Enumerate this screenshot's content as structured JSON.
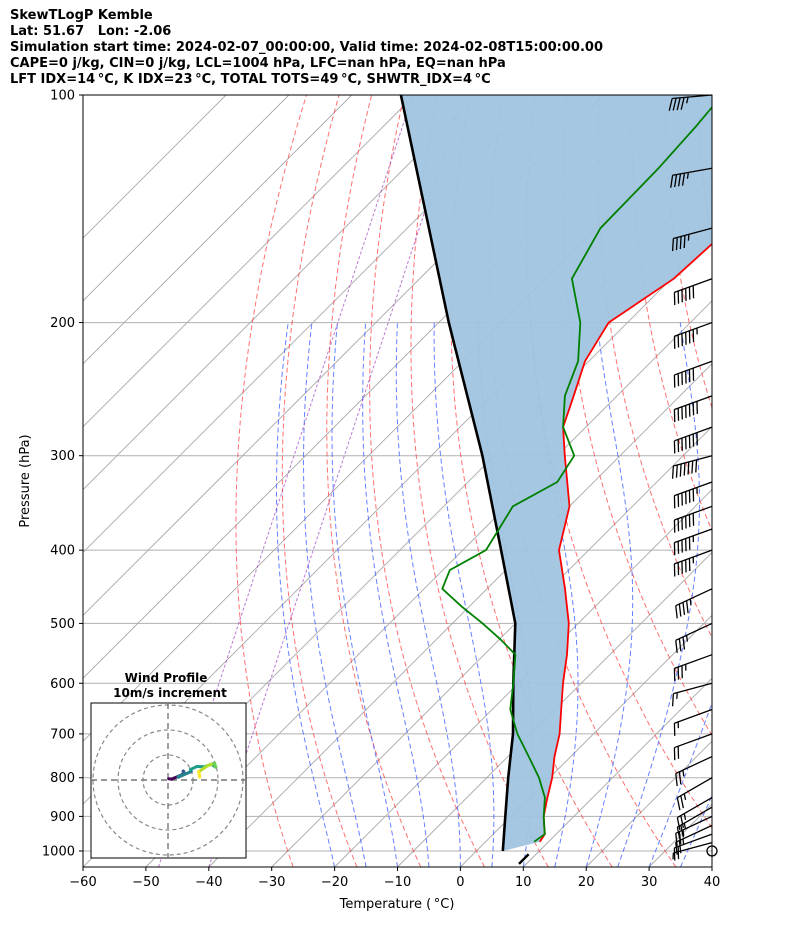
{
  "header": {
    "line1": "SkewTLogP Kemble",
    "line2": "Lat: 51.67   Lon: -2.06",
    "line3": "Simulation start time: 2024-02-07_00:00:00, Valid time: 2024-02-08T15:00:00.00",
    "line4": "CAPE=0 j/kg, CIN=0 j/kg, LCL=1004 hPa, LFC=nan hPa, EQ=nan hPa",
    "line5": "LFT IDX=14 °C, K IDX=23 °C, TOTAL TOTS=49 °C, SHWTR_IDX=4 °C"
  },
  "chart_data": {
    "type": "line",
    "xlabel": "Temperature ( °C)",
    "ylabel": "Pressure (hPa)",
    "xlim": [
      -60,
      40
    ],
    "ylim": [
      1050,
      100
    ],
    "y_scale": "log",
    "skew": "temperature isotherms skewed right with height",
    "x_ticks": [
      "−60",
      "−50",
      "−40",
      "−30",
      "−20",
      "−10",
      "0",
      "10",
      "20",
      "30",
      "40"
    ],
    "y_ticks": [
      "100",
      "200",
      "300",
      "400",
      "500",
      "600",
      "700",
      "800",
      "900",
      "1000"
    ],
    "y_tick_values": [
      100,
      200,
      300,
      400,
      500,
      600,
      700,
      800,
      900,
      1000
    ],
    "grid": true,
    "series": [
      {
        "role": "temperature",
        "color": "#ff0000",
        "pressure": [
          972,
          950,
          925,
          900,
          850,
          800,
          750,
          700,
          650,
          600,
          550,
          500,
          450,
          400,
          350,
          300,
          275,
          250,
          225,
          200,
          175,
          150,
          125,
          110,
          100
        ],
        "values": [
          8.6,
          8.2,
          6.7,
          5.2,
          2.8,
          0.4,
          -2.6,
          -5.4,
          -9.0,
          -12.9,
          -16.8,
          -21.5,
          -27.6,
          -34.7,
          -40.0,
          -48.8,
          -53.6,
          -56.9,
          -60.6,
          -63.0,
          -59.6,
          -58.8,
          -59.1,
          -61.7,
          -64.3
        ]
      },
      {
        "role": "dewpoint",
        "color": "#008000",
        "pressure": [
          972,
          950,
          925,
          900,
          850,
          800,
          750,
          700,
          650,
          600,
          550,
          525,
          500,
          475,
          450,
          425,
          400,
          375,
          350,
          325,
          300,
          275,
          250,
          225,
          200,
          175,
          150,
          125,
          110,
          100
        ],
        "values": [
          7.7,
          8.2,
          6.7,
          5.2,
          2.4,
          -1.7,
          -6.7,
          -12.1,
          -17.1,
          -20.8,
          -25.0,
          -29.8,
          -35.2,
          -41.2,
          -47.1,
          -48.9,
          -46.3,
          -47.6,
          -49.0,
          -45.8,
          -47.3,
          -53.6,
          -58.3,
          -61.7,
          -67.5,
          -75.8,
          -79.3,
          -79.6,
          -80.3,
          -81.1
        ]
      },
      {
        "role": "parcel",
        "color": "#000000",
        "pressure": [
          1000,
          900,
          800,
          700,
          600,
          500,
          400,
          300,
          200,
          100
        ],
        "values": [
          4.2,
          -0.9,
          -6.6,
          -12.8,
          -20.8,
          -30.0,
          -43.9,
          -61.9,
          -88.4,
          -132.2
        ]
      }
    ],
    "shading": {
      "between": [
        "parcel",
        "temperature"
      ],
      "color": "#a0c4e0"
    },
    "wind_barbs": {
      "pressure": [
        1000,
        975,
        950,
        925,
        900,
        875,
        850,
        800,
        750,
        700,
        650,
        600,
        550,
        500,
        450,
        400,
        375,
        350,
        325,
        300,
        275,
        250,
        225,
        200,
        175,
        150,
        125,
        100
      ],
      "speed_kt": [
        2,
        5,
        20,
        25,
        25,
        25,
        25,
        25,
        25,
        20,
        15,
        15,
        35,
        35,
        45,
        55,
        55,
        60,
        65,
        70,
        70,
        70,
        60,
        65,
        60,
        45,
        45,
        45
      ],
      "direction_deg": [
        210,
        255,
        250,
        245,
        245,
        240,
        240,
        240,
        245,
        250,
        250,
        255,
        250,
        245,
        245,
        250,
        250,
        250,
        250,
        255,
        250,
        250,
        250,
        250,
        250,
        255,
        260,
        265
      ]
    },
    "inset": {
      "title": "Wind Profile",
      "subtitle": "10m/s increment",
      "hodograph_colormap": "viridis"
    }
  }
}
